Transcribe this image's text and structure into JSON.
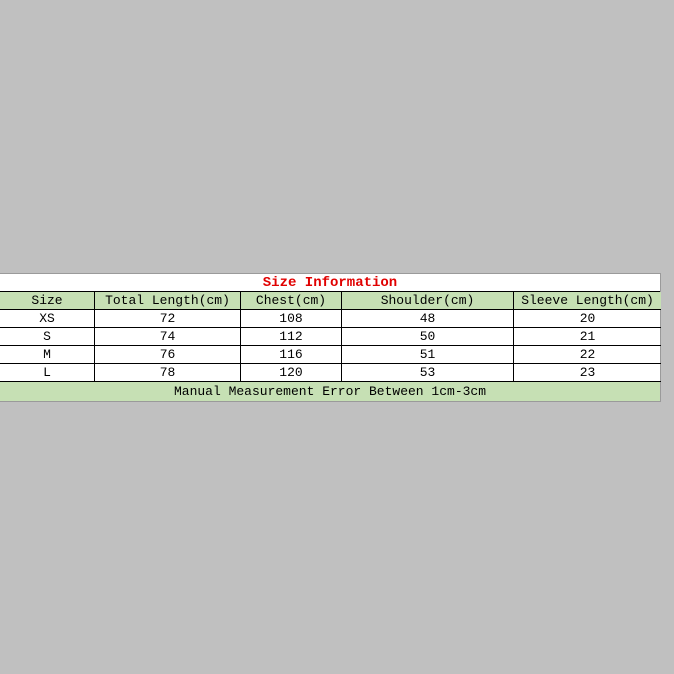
{
  "table": {
    "title": "Size Information",
    "header": [
      "Size",
      "Total Length(cm)",
      "Chest(cm)",
      "Shoulder(cm)",
      "Sleeve Length(cm)"
    ],
    "rows": [
      [
        "XS",
        72,
        108,
        48,
        20
      ],
      [
        "S",
        74,
        112,
        50,
        21
      ],
      [
        "M",
        76,
        116,
        51,
        22
      ],
      [
        "L",
        78,
        120,
        53,
        23
      ]
    ],
    "footer": "Manual Measurement Error Between 1cm-3cm"
  }
}
